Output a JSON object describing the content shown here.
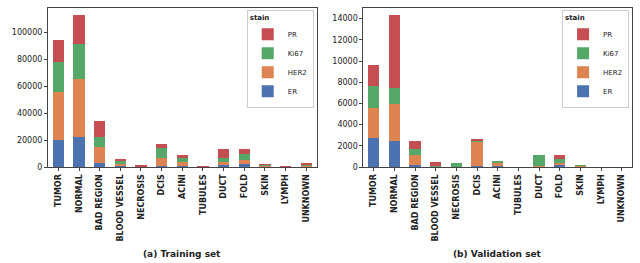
{
  "chart_data": [
    {
      "type": "bar",
      "title": "(a) Training set",
      "stacked": true,
      "grid": false,
      "legend": "upper right",
      "legend_title": "stain",
      "categories": [
        "TUMOR",
        "NORMAL",
        "BAD REGION",
        "BLOOD VESSEL",
        "NECROSIS",
        "DCIS",
        "ACINI",
        "TUBULES",
        "DUCT",
        "FOLD",
        "SKIN",
        "LYMPH",
        "UNKNOWN"
      ],
      "series": [
        {
          "name": "ER",
          "color": "#4c72b0",
          "values": [
            20000,
            22500,
            3000,
            500,
            0,
            1000,
            1000,
            100,
            1500,
            2000,
            200,
            50,
            500
          ]
        },
        {
          "name": "HER2",
          "color": "#dd8452",
          "values": [
            36000,
            43000,
            12000,
            1500,
            200,
            6000,
            2500,
            200,
            2000,
            3000,
            800,
            50,
            500
          ]
        },
        {
          "name": "Ki67",
          "color": "#55a868",
          "values": [
            22000,
            26000,
            7000,
            3000,
            300,
            7000,
            3000,
            200,
            3000,
            5000,
            500,
            50,
            500
          ]
        },
        {
          "name": "PR",
          "color": "#c44e52",
          "values": [
            16000,
            21000,
            12000,
            800,
            1200,
            3000,
            2500,
            100,
            7000,
            3500,
            500,
            50,
            1000
          ]
        }
      ],
      "ylim": [
        0,
        118000
      ],
      "yticks": [
        0,
        20000,
        40000,
        60000,
        80000,
        100000
      ]
    },
    {
      "type": "bar",
      "title": "(b) Validation set",
      "stacked": true,
      "grid": false,
      "legend": "upper right",
      "legend_title": "stain",
      "categories": [
        "TUMOR",
        "NORMAL",
        "BAD REGION",
        "BLOOD VESSEL",
        "NECROSIS",
        "DCIS",
        "ACINI",
        "TUBULES",
        "DUCT",
        "FOLD",
        "SKIN",
        "LYMPH",
        "UNKNOWN"
      ],
      "series": [
        {
          "name": "ER",
          "color": "#4c72b0",
          "values": [
            2700,
            2500,
            200,
            0,
            0,
            50,
            50,
            0,
            0,
            200,
            50,
            0,
            0
          ]
        },
        {
          "name": "HER2",
          "color": "#dd8452",
          "values": [
            2900,
            3400,
            900,
            0,
            0,
            2400,
            400,
            0,
            100,
            200,
            50,
            0,
            0
          ]
        },
        {
          "name": "Ki67",
          "color": "#55a868",
          "values": [
            2000,
            1600,
            600,
            100,
            350,
            50,
            50,
            0,
            1000,
            400,
            50,
            0,
            0
          ]
        },
        {
          "name": "PR",
          "color": "#c44e52",
          "values": [
            2000,
            6800,
            800,
            400,
            0,
            100,
            0,
            0,
            0,
            300,
            0,
            0,
            0
          ]
        }
      ],
      "ylim": [
        0,
        15000
      ],
      "yticks": [
        0,
        2000,
        4000,
        6000,
        8000,
        10000,
        12000,
        14000
      ]
    }
  ]
}
